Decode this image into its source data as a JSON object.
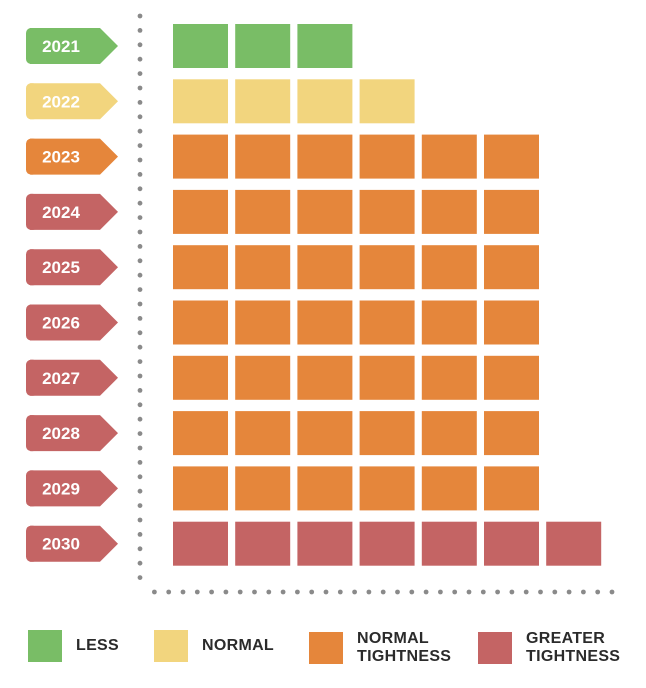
{
  "chart_data": {
    "type": "unit-bar",
    "title": "",
    "categories": [
      "2021",
      "2022",
      "2023",
      "2024",
      "2025",
      "2026",
      "2027",
      "2028",
      "2029",
      "2030"
    ],
    "values": [
      3,
      4,
      6,
      6,
      6,
      6,
      6,
      6,
      6,
      7
    ],
    "category_levels": [
      "less",
      "normal",
      "normal_tightness",
      "normal_tightness",
      "normal_tightness",
      "normal_tightness",
      "normal_tightness",
      "normal_tightness",
      "normal_tightness",
      "greater_tightness"
    ],
    "tag_levels": [
      "less",
      "normal",
      "normal_tightness",
      "greater_tightness",
      "greater_tightness",
      "greater_tightness",
      "greater_tightness",
      "greater_tightness",
      "greater_tightness",
      "greater_tightness"
    ],
    "xlim": [
      0,
      7
    ],
    "grid": false,
    "legend_position": "bottom",
    "legend": [
      {
        "key": "less",
        "label": "LESS",
        "color": "#79bd66"
      },
      {
        "key": "normal",
        "label": "NORMAL",
        "color": "#f2d57e"
      },
      {
        "key": "normal_tightness",
        "label": "NORMAL\nTIGHTNESS",
        "color": "#e5863b"
      },
      {
        "key": "greater_tightness",
        "label": "GREATER\nTIGHTNESS",
        "color": "#c46464"
      }
    ]
  },
  "colors": {
    "less": "#79bd66",
    "normal": "#f2d57e",
    "normal_tightness": "#e5863b",
    "greater_tightness": "#c46464",
    "axis_dots": "#8a8a8a"
  }
}
